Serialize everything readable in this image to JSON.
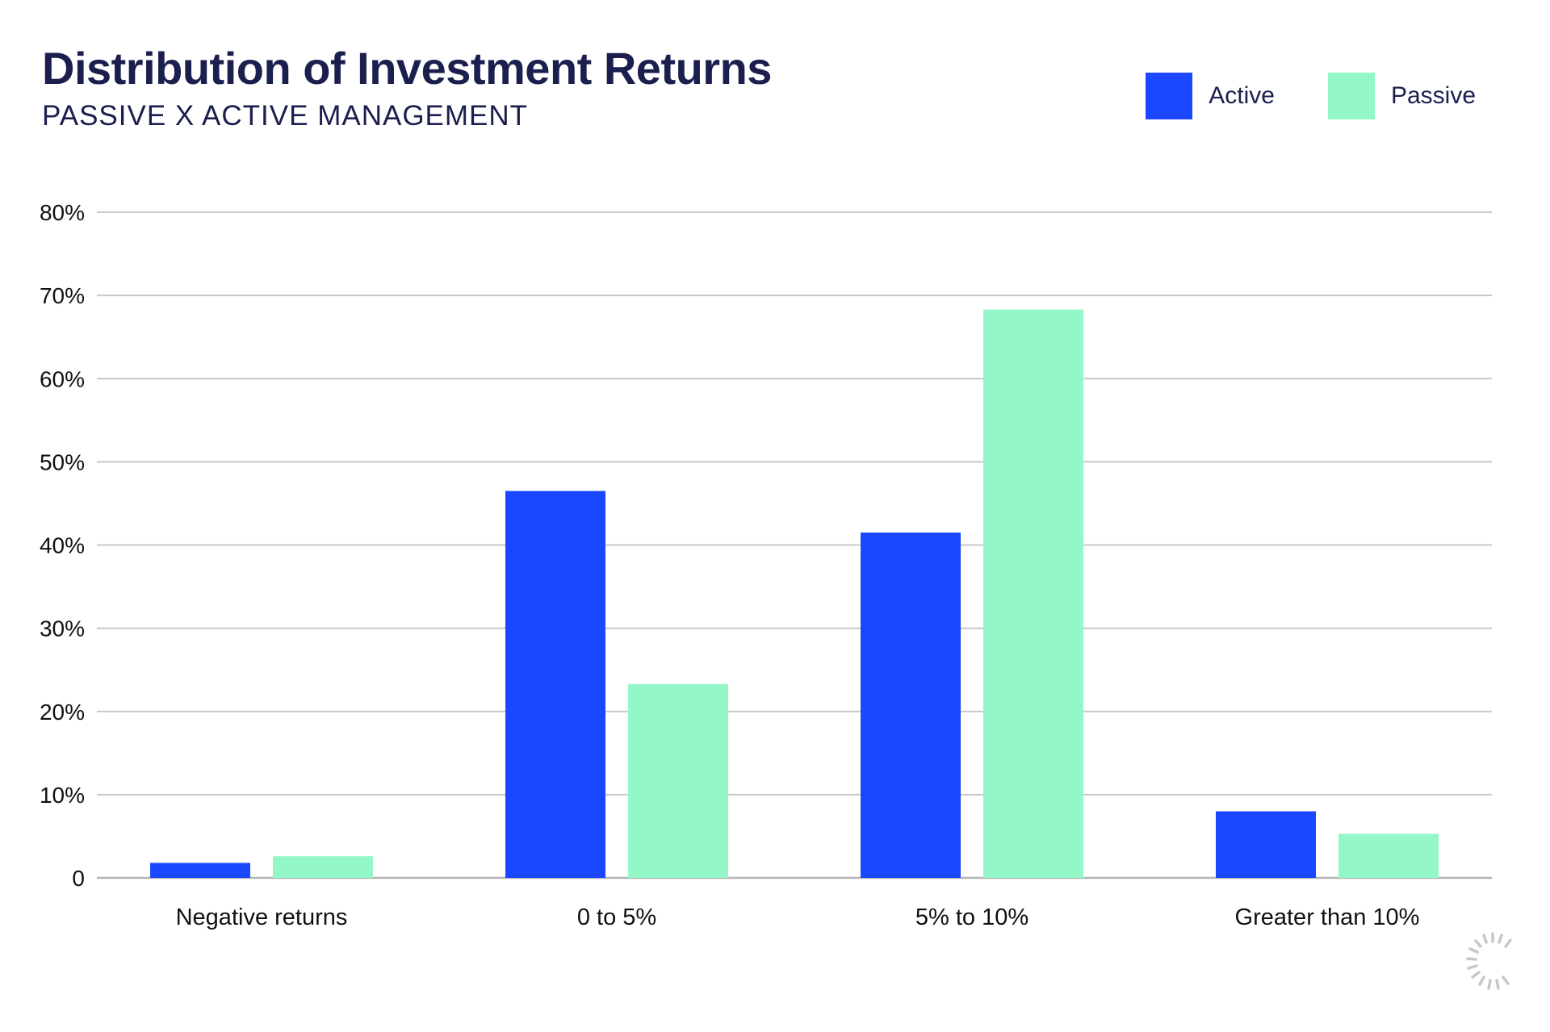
{
  "header": {
    "title": "Distribution of Investment Returns",
    "subtitle": "PASSIVE X ACTIVE MANAGEMENT"
  },
  "colors": {
    "active": "#1a47ff",
    "passive": "#94f7c8",
    "grid": "#c8c8c8",
    "text": "#1b1f4e"
  },
  "chart_data": {
    "type": "bar",
    "title": "Distribution of Investment Returns",
    "subtitle": "PASSIVE X ACTIVE MANAGEMENT",
    "categories": [
      "Negative returns",
      "0 to 5%",
      "5% to 10%",
      "Greater than 10%"
    ],
    "series": [
      {
        "name": "Active",
        "values": [
          1.8,
          46.5,
          41.5,
          8.0
        ]
      },
      {
        "name": "Passive",
        "values": [
          2.6,
          23.3,
          68.3,
          5.3
        ]
      }
    ],
    "ylim": [
      0,
      80
    ],
    "yticks": [
      0,
      10,
      20,
      30,
      40,
      50,
      60,
      70,
      80
    ],
    "ytick_labels": [
      "0",
      "10%",
      "20%",
      "30%",
      "40%",
      "50%",
      "60%",
      "70%",
      "80%"
    ],
    "xlabel": "",
    "ylabel": "",
    "grid": true,
    "legend_position": "top-right"
  }
}
